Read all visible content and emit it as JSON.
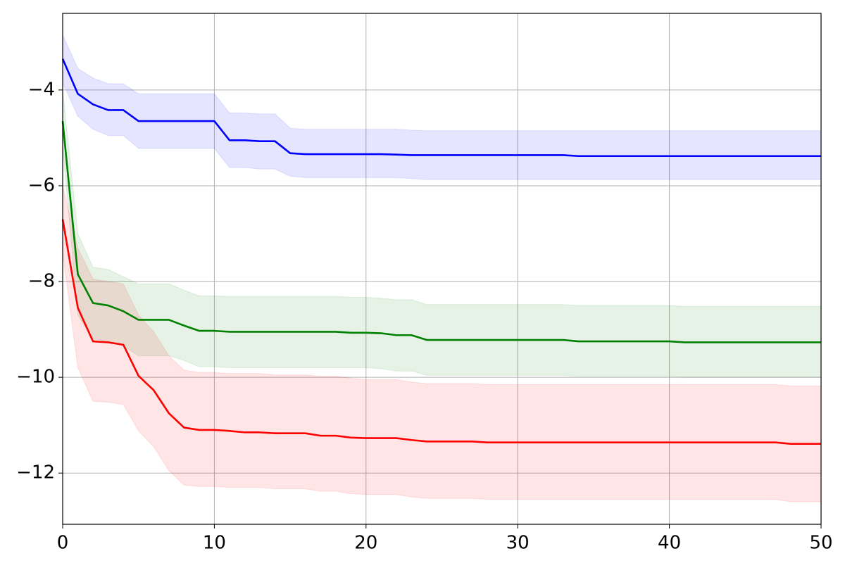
{
  "chart_data": {
    "type": "line",
    "x": [
      0,
      1,
      2,
      3,
      4,
      5,
      6,
      7,
      8,
      9,
      10,
      11,
      12,
      13,
      14,
      15,
      16,
      17,
      18,
      19,
      20,
      21,
      22,
      23,
      24,
      25,
      26,
      27,
      28,
      29,
      30,
      31,
      32,
      33,
      34,
      35,
      36,
      37,
      38,
      39,
      40,
      41,
      42,
      43,
      44,
      45,
      46,
      47,
      48,
      49,
      50
    ],
    "series": [
      {
        "color": "#0000ff",
        "values": [
          -3.35,
          -4.08,
          -4.3,
          -4.42,
          -4.42,
          -4.65,
          -4.65,
          -4.65,
          -4.65,
          -4.65,
          -4.65,
          -5.05,
          -5.05,
          -5.07,
          -5.07,
          -5.32,
          -5.34,
          -5.34,
          -5.34,
          -5.34,
          -5.34,
          -5.34,
          -5.35,
          -5.36,
          -5.36,
          -5.36,
          -5.36,
          -5.36,
          -5.36,
          -5.36,
          -5.36,
          -5.36,
          -5.36,
          -5.36,
          -5.38,
          -5.38,
          -5.38,
          -5.38,
          -5.38,
          -5.38,
          -5.38,
          -5.38,
          -5.38,
          -5.38,
          -5.38,
          -5.38,
          -5.38,
          -5.38,
          -5.38,
          -5.38,
          -5.38
        ],
        "upper": [
          -2.85,
          -3.55,
          -3.75,
          -3.87,
          -3.87,
          -4.08,
          -4.08,
          -4.08,
          -4.08,
          -4.08,
          -4.08,
          -4.48,
          -4.48,
          -4.5,
          -4.5,
          -4.8,
          -4.82,
          -4.82,
          -4.82,
          -4.82,
          -4.82,
          -4.82,
          -4.82,
          -4.84,
          -4.85,
          -4.85,
          -4.85,
          -4.85,
          -4.85,
          -4.85,
          -4.85,
          -4.85,
          -4.85,
          -4.85,
          -4.85,
          -4.85,
          -4.85,
          -4.85,
          -4.85,
          -4.85,
          -4.85,
          -4.85,
          -4.85,
          -4.85,
          -4.85,
          -4.85,
          -4.85,
          -4.85,
          -4.85,
          -4.85,
          -4.85
        ],
        "lower": [
          -3.85,
          -4.55,
          -4.82,
          -4.95,
          -4.95,
          -5.22,
          -5.22,
          -5.22,
          -5.22,
          -5.22,
          -5.22,
          -5.62,
          -5.62,
          -5.65,
          -5.65,
          -5.8,
          -5.83,
          -5.83,
          -5.83,
          -5.83,
          -5.83,
          -5.83,
          -5.83,
          -5.85,
          -5.87,
          -5.87,
          -5.87,
          -5.87,
          -5.87,
          -5.87,
          -5.87,
          -5.87,
          -5.87,
          -5.87,
          -5.87,
          -5.87,
          -5.87,
          -5.87,
          -5.87,
          -5.87,
          -5.87,
          -5.87,
          -5.87,
          -5.87,
          -5.87,
          -5.87,
          -5.87,
          -5.87,
          -5.87,
          -5.87,
          -5.87
        ]
      },
      {
        "color": "#008000",
        "values": [
          -4.65,
          -7.85,
          -8.45,
          -8.5,
          -8.62,
          -8.8,
          -8.8,
          -8.8,
          -8.92,
          -9.03,
          -9.03,
          -9.05,
          -9.05,
          -9.05,
          -9.05,
          -9.05,
          -9.05,
          -9.05,
          -9.05,
          -9.07,
          -9.07,
          -9.08,
          -9.12,
          -9.12,
          -9.22,
          -9.22,
          -9.22,
          -9.22,
          -9.22,
          -9.22,
          -9.22,
          -9.22,
          -9.22,
          -9.22,
          -9.25,
          -9.25,
          -9.25,
          -9.25,
          -9.25,
          -9.25,
          -9.25,
          -9.27,
          -9.27,
          -9.27,
          -9.27,
          -9.27,
          -9.27,
          -9.27,
          -9.27,
          -9.27,
          -9.27
        ],
        "upper": [
          -4.0,
          -7.0,
          -7.7,
          -7.75,
          -7.9,
          -8.05,
          -8.05,
          -8.05,
          -8.18,
          -8.3,
          -8.3,
          -8.31,
          -8.31,
          -8.31,
          -8.31,
          -8.31,
          -8.31,
          -8.31,
          -8.31,
          -8.33,
          -8.33,
          -8.35,
          -8.38,
          -8.38,
          -8.48,
          -8.48,
          -8.48,
          -8.48,
          -8.48,
          -8.48,
          -8.48,
          -8.48,
          -8.48,
          -8.48,
          -8.5,
          -8.5,
          -8.5,
          -8.5,
          -8.5,
          -8.5,
          -8.5,
          -8.52,
          -8.52,
          -8.52,
          -8.52,
          -8.52,
          -8.52,
          -8.52,
          -8.52,
          -8.52,
          -8.52
        ],
        "lower": [
          -5.2,
          -8.7,
          -9.2,
          -9.25,
          -9.35,
          -9.55,
          -9.55,
          -9.55,
          -9.65,
          -9.78,
          -9.78,
          -9.8,
          -9.8,
          -9.8,
          -9.8,
          -9.8,
          -9.8,
          -9.8,
          -9.8,
          -9.8,
          -9.8,
          -9.82,
          -9.87,
          -9.87,
          -9.96,
          -9.96,
          -9.96,
          -9.96,
          -9.96,
          -9.96,
          -9.96,
          -9.96,
          -9.96,
          -9.96,
          -9.98,
          -9.98,
          -9.98,
          -9.98,
          -9.98,
          -9.98,
          -9.98,
          -10.0,
          -10.0,
          -10.0,
          -10.0,
          -10.0,
          -10.0,
          -10.0,
          -10.0,
          -10.0,
          -10.0
        ]
      },
      {
        "color": "#ff0000",
        "values": [
          -6.7,
          -8.55,
          -9.25,
          -9.27,
          -9.32,
          -9.97,
          -10.27,
          -10.75,
          -11.05,
          -11.1,
          -11.1,
          -11.12,
          -11.15,
          -11.15,
          -11.17,
          -11.17,
          -11.17,
          -11.22,
          -11.22,
          -11.26,
          -11.27,
          -11.27,
          -11.27,
          -11.31,
          -11.34,
          -11.34,
          -11.34,
          -11.34,
          -11.36,
          -11.36,
          -11.36,
          -11.36,
          -11.36,
          -11.36,
          -11.36,
          -11.36,
          -11.36,
          -11.36,
          -11.36,
          -11.36,
          -11.36,
          -11.36,
          -11.36,
          -11.36,
          -11.36,
          -11.36,
          -11.36,
          -11.36,
          -11.39,
          -11.39,
          -11.39
        ],
        "upper": [
          -6.0,
          -7.3,
          -7.95,
          -8.0,
          -8.05,
          -8.7,
          -9.05,
          -9.55,
          -9.85,
          -9.9,
          -9.9,
          -9.92,
          -9.92,
          -9.92,
          -9.95,
          -9.95,
          -9.95,
          -9.98,
          -9.98,
          -10.02,
          -10.05,
          -10.05,
          -10.05,
          -10.1,
          -10.13,
          -10.13,
          -10.13,
          -10.13,
          -10.15,
          -10.15,
          -10.15,
          -10.15,
          -10.15,
          -10.15,
          -10.15,
          -10.15,
          -10.15,
          -10.15,
          -10.15,
          -10.15,
          -10.15,
          -10.15,
          -10.15,
          -10.15,
          -10.15,
          -10.15,
          -10.15,
          -10.15,
          -10.18,
          -10.18,
          -10.18
        ],
        "lower": [
          -7.4,
          -9.8,
          -10.5,
          -10.52,
          -10.57,
          -11.12,
          -11.45,
          -11.95,
          -12.25,
          -12.28,
          -12.28,
          -12.3,
          -12.3,
          -12.3,
          -12.33,
          -12.33,
          -12.33,
          -12.38,
          -12.38,
          -12.43,
          -12.45,
          -12.45,
          -12.45,
          -12.5,
          -12.53,
          -12.53,
          -12.53,
          -12.53,
          -12.55,
          -12.55,
          -12.55,
          -12.55,
          -12.55,
          -12.55,
          -12.55,
          -12.55,
          -12.55,
          -12.55,
          -12.55,
          -12.55,
          -12.55,
          -12.55,
          -12.55,
          -12.55,
          -12.55,
          -12.55,
          -12.55,
          -12.55,
          -12.6,
          -12.6,
          -12.6
        ]
      }
    ],
    "band_opacity": 0.1,
    "xlim": [
      0,
      50
    ],
    "xticks": [
      0,
      10,
      20,
      30,
      40,
      50
    ],
    "ylim": [
      -13.07,
      -2.4
    ],
    "yticks": [
      {
        "value": -12,
        "label": "−12"
      },
      {
        "value": -10,
        "label": "−10"
      },
      {
        "value": -8,
        "label": "−8"
      },
      {
        "value": -6,
        "label": "−6"
      },
      {
        "value": -4,
        "label": "−4"
      }
    ],
    "grid": true
  }
}
